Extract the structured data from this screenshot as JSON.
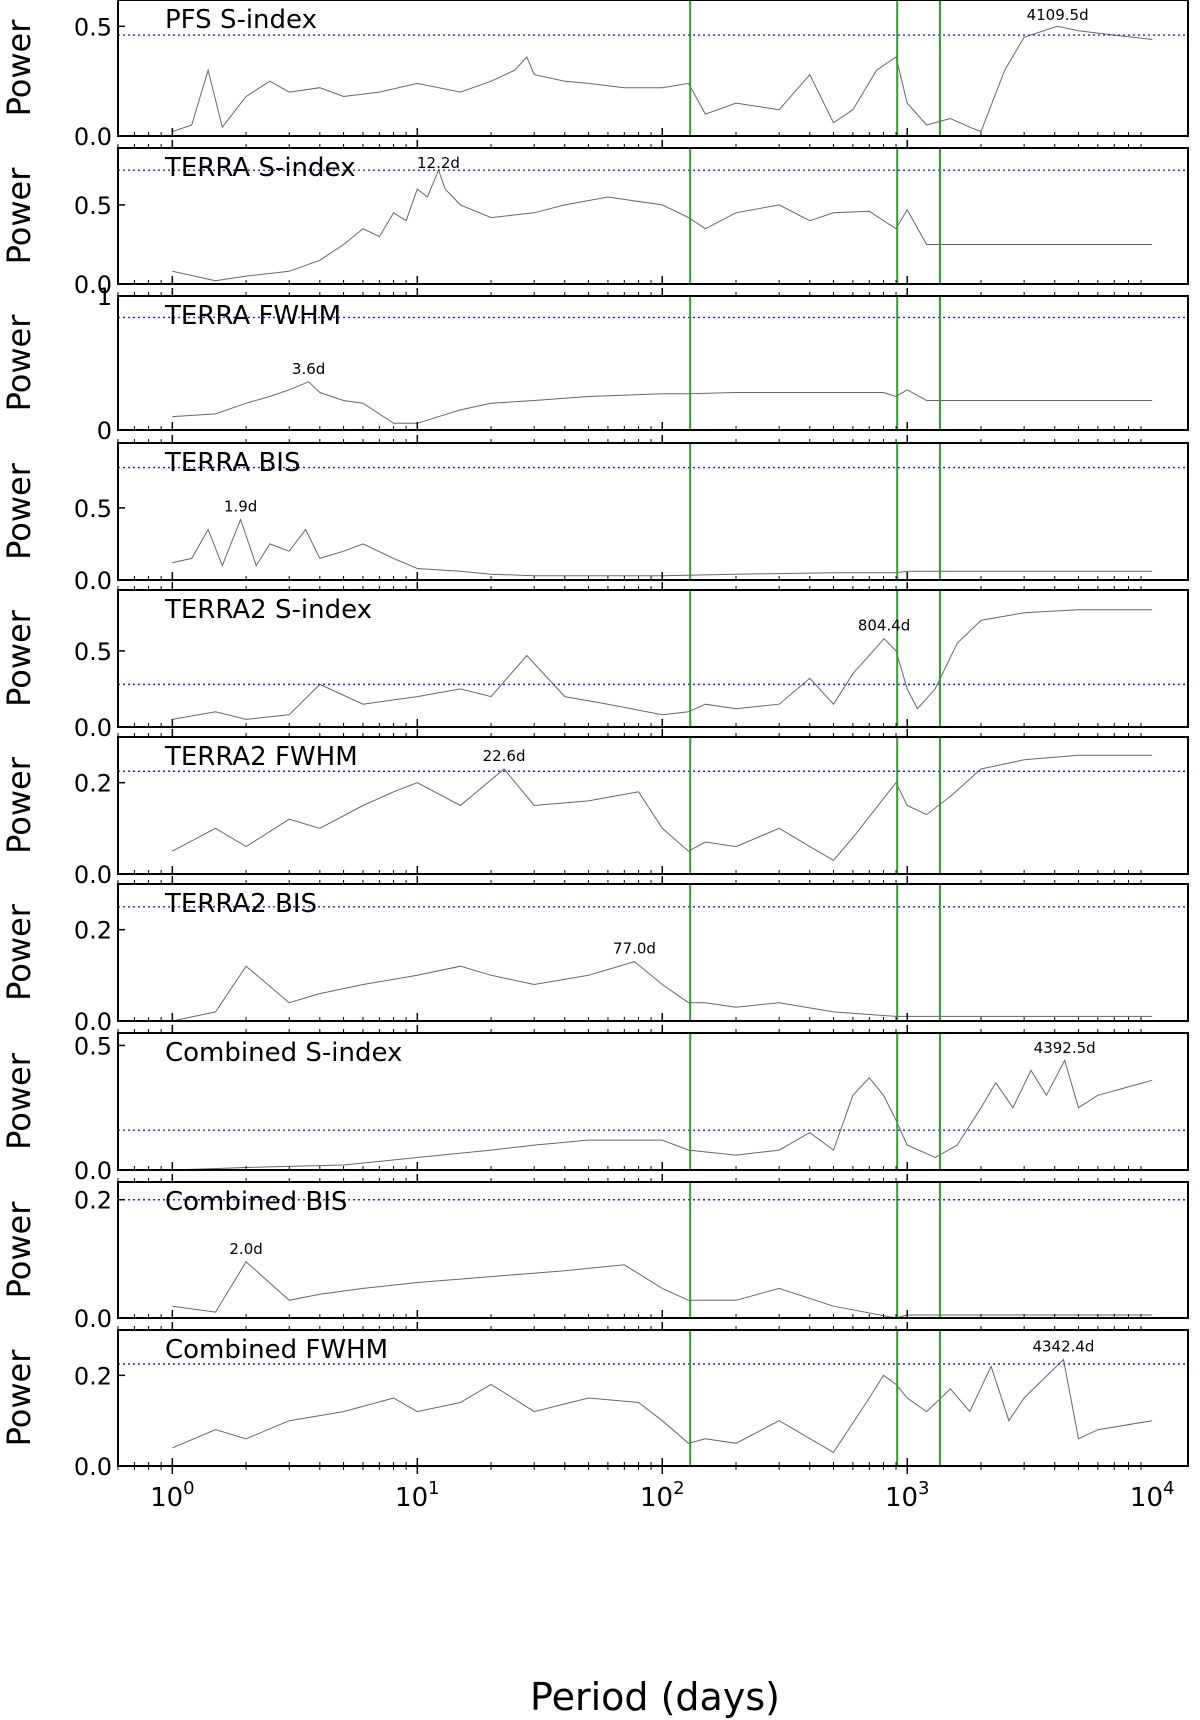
{
  "chart_data": {
    "type": "line",
    "x_scale": "log",
    "xlim": [
      0.6,
      14000
    ],
    "xlabel": "Period (days)",
    "xticks": [
      {
        "value": 1,
        "base": "10",
        "exp": "0"
      },
      {
        "value": 10,
        "base": "10",
        "exp": "1"
      },
      {
        "value": 100,
        "base": "10",
        "exp": "2"
      },
      {
        "value": 1000,
        "base": "10",
        "exp": "3"
      },
      {
        "value": 10000,
        "base": "10",
        "exp": "4"
      }
    ],
    "vertical_lines": [
      130,
      910,
      1360
    ],
    "vertical_line_color": "#2ca02c",
    "threshold_color": "#2020d0",
    "series_color": "#666666",
    "grid": false,
    "panels": [
      {
        "title": "PFS S-index",
        "ylabel": "Power",
        "ylim": [
          0,
          0.62
        ],
        "yticks": [
          {
            "v": 0.0,
            "t": "0.0"
          },
          {
            "v": 0.5,
            "t": "0.5"
          }
        ],
        "threshold": 0.46,
        "peak": {
          "label": "4109.5d",
          "period": 4109.5,
          "power": 0.5
        },
        "series": [
          {
            "x": [
              1.0,
              1.2,
              1.4,
              1.6,
              2.0,
              2.5,
              3.0,
              4.0,
              5.0,
              7.0,
              10.0,
              15.0,
              20.0,
              25.0,
              28.0,
              30.0,
              40.0,
              50.0,
              70.0,
              100.0,
              128.0,
              150.0,
              200.0,
              300.0,
              400.0,
              500.0,
              600.0,
              750.0,
              900.0,
              1000.0,
              1200.0,
              1500.0,
              1800.0,
              2000.0,
              2500.0,
              3000.0,
              4100.0,
              5000.0,
              7000.0,
              10000.0
            ],
            "y": [
              0.02,
              0.05,
              0.3,
              0.04,
              0.18,
              0.25,
              0.2,
              0.22,
              0.18,
              0.2,
              0.24,
              0.2,
              0.25,
              0.3,
              0.36,
              0.28,
              0.25,
              0.24,
              0.22,
              0.22,
              0.24,
              0.1,
              0.15,
              0.12,
              0.28,
              0.06,
              0.12,
              0.3,
              0.36,
              0.15,
              0.05,
              0.08,
              0.04,
              0.02,
              0.3,
              0.45,
              0.5,
              0.48,
              0.46,
              0.44
            ]
          }
        ]
      },
      {
        "title": "TERRA S-index",
        "ylabel": "Power",
        "ylim": [
          0,
          0.86
        ],
        "yticks": [
          {
            "v": 0.0,
            "t": "0.0"
          },
          {
            "v": 0.5,
            "t": "0.5"
          }
        ],
        "threshold": 0.72,
        "peak": {
          "label": "12.2d",
          "period": 12.2,
          "power": 0.72
        },
        "series": [
          {
            "x": [
              1.0,
              1.5,
              2.0,
              3.0,
              4.0,
              5.0,
              6.0,
              7.0,
              8.0,
              9.0,
              10.0,
              11.0,
              12.2,
              13.0,
              15.0,
              20.0,
              30.0,
              40.0,
              60.0,
              100.0,
              128.0,
              150.0,
              200.0,
              300.0,
              400.0,
              500.0,
              700.0,
              900.0,
              1000.0,
              1200.0,
              2000.0,
              5000.0,
              10000.0
            ],
            "y": [
              0.08,
              0.02,
              0.05,
              0.08,
              0.15,
              0.25,
              0.35,
              0.3,
              0.45,
              0.4,
              0.6,
              0.55,
              0.72,
              0.6,
              0.5,
              0.42,
              0.45,
              0.5,
              0.55,
              0.5,
              0.42,
              0.35,
              0.45,
              0.5,
              0.4,
              0.45,
              0.46,
              0.35,
              0.47,
              0.25,
              0.25,
              0.25,
              0.25
            ]
          }
        ]
      },
      {
        "title": "TERRA FWHM",
        "ylabel": "Power",
        "ylim": [
          0,
          1.0
        ],
        "yticks": [
          {
            "v": 0,
            "t": "0"
          },
          {
            "v": 1,
            "t": "1"
          }
        ],
        "threshold": 0.84,
        "peak": {
          "label": "3.6d",
          "period": 3.6,
          "power": 0.36
        },
        "series": [
          {
            "x": [
              1.0,
              1.5,
              2.0,
              2.5,
              3.0,
              3.6,
              4.0,
              5.0,
              6.0,
              8.0,
              10.0,
              15.0,
              20.0,
              30.0,
              50.0,
              100.0,
              128.0,
              200.0,
              300.0,
              500.0,
              800.0,
              900.0,
              1000.0,
              1200.0,
              2000.0,
              5000.0,
              10000.0
            ],
            "y": [
              0.1,
              0.12,
              0.2,
              0.25,
              0.3,
              0.36,
              0.28,
              0.22,
              0.2,
              0.05,
              0.05,
              0.15,
              0.2,
              0.22,
              0.25,
              0.27,
              0.27,
              0.28,
              0.28,
              0.28,
              0.28,
              0.25,
              0.3,
              0.22,
              0.22,
              0.22,
              0.22
            ]
          }
        ]
      },
      {
        "title": "TERRA BIS",
        "ylabel": "Power",
        "ylim": [
          0,
          0.95
        ],
        "yticks": [
          {
            "v": 0.0,
            "t": "0.0"
          },
          {
            "v": 0.5,
            "t": "0.5"
          }
        ],
        "threshold": 0.78,
        "peak": {
          "label": "1.9d",
          "period": 1.9,
          "power": 0.42
        },
        "series": [
          {
            "x": [
              1.0,
              1.2,
              1.4,
              1.6,
              1.9,
              2.2,
              2.5,
              3.0,
              3.5,
              4.0,
              5.0,
              6.0,
              8.0,
              10.0,
              15.0,
              20.0,
              30.0,
              50.0,
              100.0,
              200.0,
              500.0,
              900.0,
              1000.0,
              1200.0,
              2000.0,
              5000.0,
              10000.0
            ],
            "y": [
              0.12,
              0.15,
              0.35,
              0.1,
              0.42,
              0.1,
              0.25,
              0.2,
              0.35,
              0.15,
              0.2,
              0.25,
              0.15,
              0.08,
              0.06,
              0.04,
              0.03,
              0.03,
              0.03,
              0.04,
              0.05,
              0.05,
              0.06,
              0.06,
              0.06,
              0.06,
              0.06
            ]
          }
        ]
      },
      {
        "title": "TERRA2 S-index",
        "ylabel": "Power",
        "ylim": [
          0,
          0.9
        ],
        "yticks": [
          {
            "v": 0.0,
            "t": "0.0"
          },
          {
            "v": 0.5,
            "t": "0.5"
          }
        ],
        "threshold": 0.28,
        "peak": {
          "label": "804.4d",
          "period": 804.4,
          "power": 0.58
        },
        "series": [
          {
            "x": [
              1.0,
              1.5,
              2.0,
              3.0,
              4.0,
              6.0,
              10.0,
              15.0,
              20.0,
              28.0,
              40.0,
              60.0,
              100.0,
              128.0,
              150.0,
              200.0,
              300.0,
              400.0,
              500.0,
              600.0,
              804.4,
              900.0,
              1000.0,
              1100.0,
              1300.0,
              1600.0,
              2000.0,
              3000.0,
              5000.0,
              10000.0
            ],
            "y": [
              0.05,
              0.1,
              0.05,
              0.08,
              0.28,
              0.15,
              0.2,
              0.25,
              0.2,
              0.47,
              0.2,
              0.15,
              0.08,
              0.1,
              0.15,
              0.12,
              0.15,
              0.32,
              0.15,
              0.35,
              0.58,
              0.5,
              0.25,
              0.12,
              0.25,
              0.55,
              0.7,
              0.75,
              0.77,
              0.77
            ]
          }
        ]
      },
      {
        "title": "TERRA2 FWHM",
        "ylabel": "Power",
        "ylim": [
          0,
          0.3
        ],
        "yticks": [
          {
            "v": 0.0,
            "t": "0.0"
          },
          {
            "v": 0.2,
            "t": "0.2"
          }
        ],
        "threshold": 0.225,
        "peak": {
          "label": "22.6d",
          "period": 22.6,
          "power": 0.23
        },
        "series": [
          {
            "x": [
              1.0,
              1.5,
              2.0,
              3.0,
              4.0,
              6.0,
              8.0,
              10.0,
              15.0,
              22.6,
              30.0,
              50.0,
              80.0,
              100.0,
              128.0,
              150.0,
              200.0,
              300.0,
              400.0,
              500.0,
              600.0,
              900.0,
              1000.0,
              1200.0,
              1500.0,
              2000.0,
              3000.0,
              5000.0,
              10000.0
            ],
            "y": [
              0.05,
              0.1,
              0.06,
              0.12,
              0.1,
              0.15,
              0.18,
              0.2,
              0.15,
              0.23,
              0.15,
              0.16,
              0.18,
              0.1,
              0.05,
              0.07,
              0.06,
              0.1,
              0.06,
              0.03,
              0.08,
              0.2,
              0.15,
              0.13,
              0.17,
              0.23,
              0.25,
              0.26,
              0.26
            ]
          }
        ]
      },
      {
        "title": "TERRA2 BIS",
        "ylabel": "Power",
        "ylim": [
          0,
          0.3
        ],
        "yticks": [
          {
            "v": 0.0,
            "t": "0.0"
          },
          {
            "v": 0.2,
            "t": "0.2"
          }
        ],
        "threshold": 0.25,
        "peak": {
          "label": "77.0d",
          "period": 77.0,
          "power": 0.13
        },
        "series": [
          {
            "x": [
              1.0,
              1.5,
              2.0,
              3.0,
              4.0,
              6.0,
              10.0,
              15.0,
              20.0,
              30.0,
              50.0,
              77.0,
              100.0,
              128.0,
              150.0,
              200.0,
              300.0,
              500.0,
              900.0,
              1000.0,
              2000.0,
              5000.0,
              10000.0
            ],
            "y": [
              0.0,
              0.02,
              0.12,
              0.04,
              0.06,
              0.08,
              0.1,
              0.12,
              0.1,
              0.08,
              0.1,
              0.13,
              0.08,
              0.04,
              0.04,
              0.03,
              0.04,
              0.02,
              0.01,
              0.01,
              0.01,
              0.01,
              0.01
            ]
          }
        ]
      },
      {
        "title": "Combined S-index",
        "ylabel": "Power",
        "ylim": [
          0,
          0.55
        ],
        "yticks": [
          {
            "v": 0.0,
            "t": "0.0"
          },
          {
            "v": 0.5,
            "t": "0.5"
          }
        ],
        "threshold": 0.16,
        "peak": {
          "label": "4392.5d",
          "period": 4392.5,
          "power": 0.44
        },
        "series": [
          {
            "x": [
              1.0,
              2.0,
              5.0,
              10.0,
              20.0,
              30.0,
              50.0,
              100.0,
              128.0,
              200.0,
              300.0,
              400.0,
              500.0,
              600.0,
              700.0,
              800.0,
              900.0,
              1000.0,
              1300.0,
              1600.0,
              2000.0,
              2300.0,
              2700.0,
              3200.0,
              3700.0,
              4392.5,
              5000.0,
              6000.0,
              10000.0
            ],
            "y": [
              0.0,
              0.01,
              0.02,
              0.05,
              0.08,
              0.1,
              0.12,
              0.12,
              0.08,
              0.06,
              0.08,
              0.15,
              0.08,
              0.3,
              0.37,
              0.3,
              0.2,
              0.1,
              0.05,
              0.1,
              0.25,
              0.35,
              0.25,
              0.4,
              0.3,
              0.44,
              0.25,
              0.3,
              0.36
            ]
          }
        ]
      },
      {
        "title": "Combined BIS",
        "ylabel": "Power",
        "ylim": [
          0,
          0.23
        ],
        "yticks": [
          {
            "v": 0.0,
            "t": "0.0"
          },
          {
            "v": 0.2,
            "t": "0.2"
          }
        ],
        "threshold": 0.2,
        "peak": {
          "label": "2.0d",
          "period": 2.0,
          "power": 0.095
        },
        "series": [
          {
            "x": [
              1.0,
              1.5,
              2.0,
              3.0,
              4.0,
              6.0,
              10.0,
              20.0,
              40.0,
              70.0,
              100.0,
              128.0,
              200.0,
              300.0,
              500.0,
              900.0,
              1000.0,
              2000.0,
              5000.0,
              10000.0
            ],
            "y": [
              0.02,
              0.01,
              0.095,
              0.03,
              0.04,
              0.05,
              0.06,
              0.07,
              0.08,
              0.09,
              0.05,
              0.03,
              0.03,
              0.05,
              0.02,
              0.0,
              0.005,
              0.005,
              0.005,
              0.005
            ]
          }
        ]
      },
      {
        "title": "Combined FWHM",
        "ylabel": "Power",
        "ylim": [
          0,
          0.3
        ],
        "yticks": [
          {
            "v": 0.0,
            "t": "0.0"
          },
          {
            "v": 0.2,
            "t": "0.2"
          }
        ],
        "threshold": 0.225,
        "peak": {
          "label": "4342.4d",
          "period": 4342.4,
          "power": 0.235
        },
        "series": [
          {
            "x": [
              1.0,
              1.5,
              2.0,
              3.0,
              5.0,
              8.0,
              10.0,
              15.0,
              20.0,
              30.0,
              50.0,
              80.0,
              100.0,
              128.0,
              150.0,
              200.0,
              300.0,
              500.0,
              700.0,
              800.0,
              900.0,
              1000.0,
              1200.0,
              1500.0,
              1800.0,
              2200.0,
              2600.0,
              3000.0,
              4342.4,
              5000.0,
              6000.0,
              10000.0
            ],
            "y": [
              0.04,
              0.08,
              0.06,
              0.1,
              0.12,
              0.15,
              0.12,
              0.14,
              0.18,
              0.12,
              0.15,
              0.14,
              0.1,
              0.05,
              0.06,
              0.05,
              0.1,
              0.03,
              0.15,
              0.2,
              0.18,
              0.15,
              0.12,
              0.17,
              0.12,
              0.22,
              0.1,
              0.15,
              0.235,
              0.06,
              0.08,
              0.1
            ]
          }
        ]
      }
    ]
  }
}
